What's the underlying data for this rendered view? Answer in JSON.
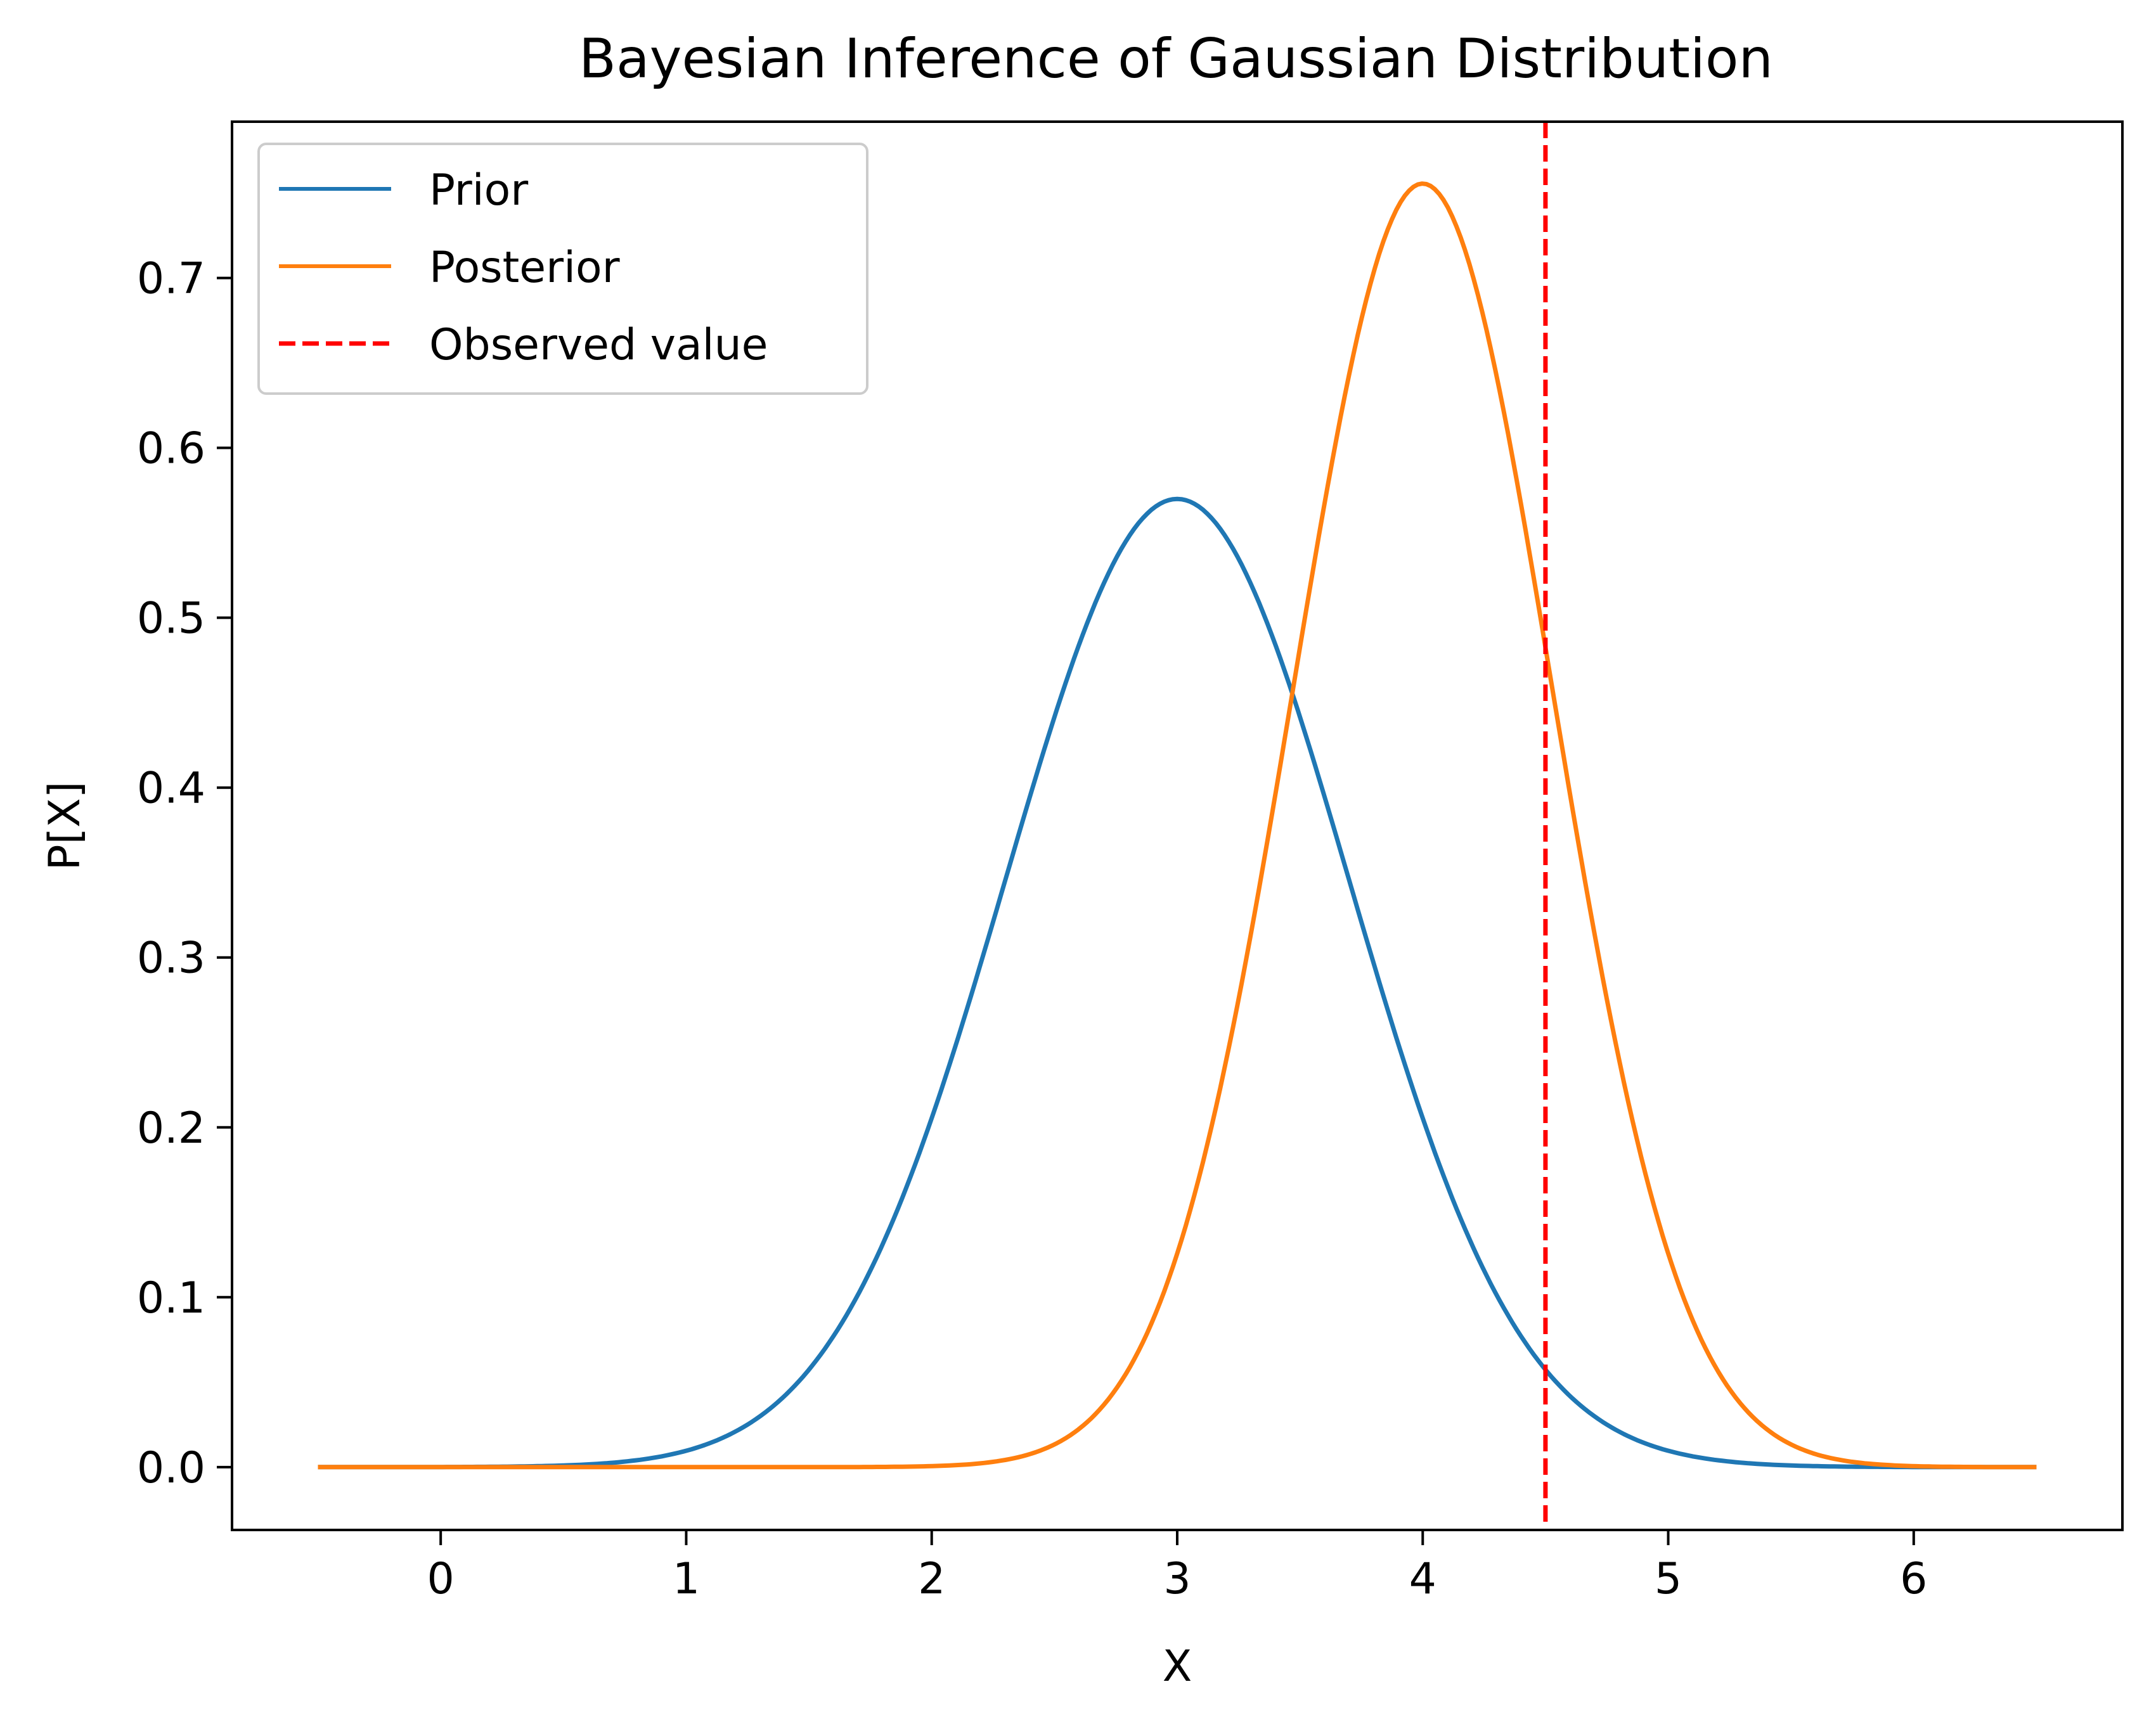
{
  "chart_data": {
    "type": "line",
    "title": "Bayesian Inference of Gaussian Distribution",
    "xlabel": "X",
    "ylabel": "P[X]",
    "xlim": [
      -0.85,
      6.85
    ],
    "ylim": [
      -0.037,
      0.792
    ],
    "xticks": [
      0,
      1,
      2,
      3,
      4,
      5,
      6
    ],
    "xtick_labels": [
      "0",
      "1",
      "2",
      "3",
      "4",
      "5",
      "6"
    ],
    "yticks": [
      0.0,
      0.1,
      0.2,
      0.3,
      0.4,
      0.5,
      0.6,
      0.7
    ],
    "ytick_labels": [
      "0.0",
      "0.1",
      "0.2",
      "0.3",
      "0.4",
      "0.5",
      "0.6",
      "0.7"
    ],
    "grid": false,
    "legend_position": "upper left",
    "x_range": [
      -0.5,
      6.5
    ],
    "series": [
      {
        "name": "Prior",
        "kind": "gaussian",
        "mean": 3.0,
        "std": 0.7,
        "color": "#1f77b4"
      },
      {
        "name": "Posterior",
        "kind": "gaussian",
        "mean": 4.0,
        "std": 0.528,
        "color": "#ff7f0e"
      }
    ],
    "vlines": [
      {
        "name": "Observed value",
        "x": 4.5,
        "color": "#ff0000",
        "style": "dashed"
      }
    ]
  }
}
